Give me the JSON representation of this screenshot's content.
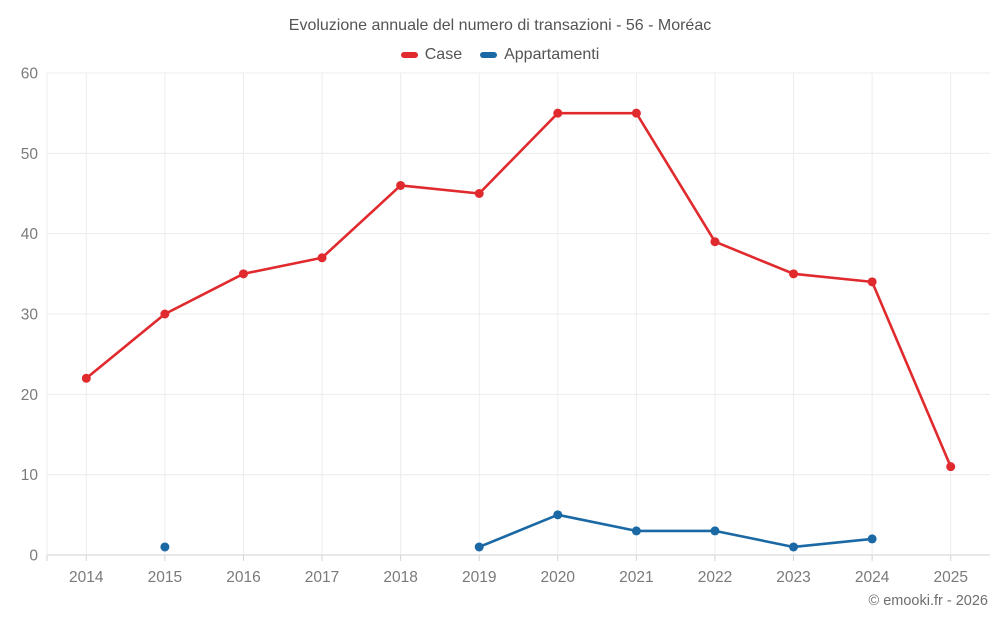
{
  "chart": {
    "copyright": "© emooki.fr - 2026"
  },
  "chart_data": {
    "type": "line",
    "title": "Evoluzione annuale del numero di transazioni - 56 - Moréac",
    "categories": [
      "2014",
      "2015",
      "2016",
      "2017",
      "2018",
      "2019",
      "2020",
      "2021",
      "2022",
      "2023",
      "2024",
      "2025"
    ],
    "series": [
      {
        "name": "Case",
        "color": "#e02a2e",
        "values": [
          22,
          30,
          35,
          37,
          46,
          45,
          55,
          55,
          39,
          35,
          34,
          11
        ]
      },
      {
        "name": "Appartamenti",
        "color": "#1b69a4",
        "values": [
          null,
          1,
          null,
          null,
          null,
          1,
          5,
          3,
          3,
          1,
          2,
          null
        ]
      }
    ],
    "ylim": [
      0,
      60
    ],
    "yticks": [
      0,
      10,
      20,
      30,
      40,
      50,
      60
    ],
    "grid": true,
    "legend_position": "top",
    "colors": {
      "grid_line": "#ececec",
      "axis_line": "#d2d2d2",
      "tick_label": "#7a7a7a",
      "title_text": "#545454"
    }
  }
}
